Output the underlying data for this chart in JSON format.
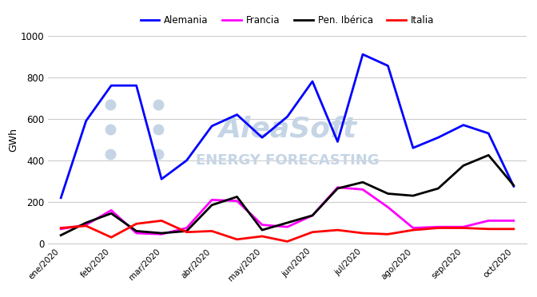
{
  "ylabel": "GWh",
  "ylim": [
    0,
    1000
  ],
  "yticks": [
    0,
    200,
    400,
    600,
    800,
    1000
  ],
  "x_labels": [
    "ene/2020",
    "feb/2020",
    "mar/2020",
    "abr/2020",
    "may/2020",
    "jun/2020",
    "jul/2020",
    "ago/2020",
    "sep/2020",
    "oct/2020"
  ],
  "series": {
    "Alemania": {
      "color": "#0000ff",
      "linewidth": 2.0,
      "values": [
        220,
        590,
        760,
        760,
        310,
        400,
        565,
        620,
        510,
        610,
        780,
        490,
        910,
        855,
        460,
        510,
        570,
        530,
        275
      ]
    },
    "Francia": {
      "color": "#ff00ff",
      "linewidth": 2.0,
      "values": [
        70,
        90,
        160,
        50,
        45,
        75,
        210,
        205,
        90,
        80,
        135,
        270,
        260,
        175,
        75,
        80,
        80,
        110,
        110
      ]
    },
    "Pen. Ibérica": {
      "color": "#000000",
      "linewidth": 2.0,
      "values": [
        40,
        100,
        145,
        60,
        50,
        60,
        185,
        225,
        65,
        100,
        135,
        265,
        295,
        240,
        230,
        265,
        375,
        425,
        280
      ]
    },
    "Italia": {
      "color": "#ff0000",
      "linewidth": 2.0,
      "values": [
        75,
        85,
        30,
        95,
        110,
        55,
        60,
        20,
        35,
        10,
        55,
        65,
        50,
        45,
        65,
        75,
        75,
        70,
        70
      ]
    }
  },
  "background_color": "#ffffff",
  "watermark_color": "#c5d5e5",
  "grid_color": "#cccccc",
  "legend_fontsize": 8.5,
  "legend_handlelength": 2.0
}
